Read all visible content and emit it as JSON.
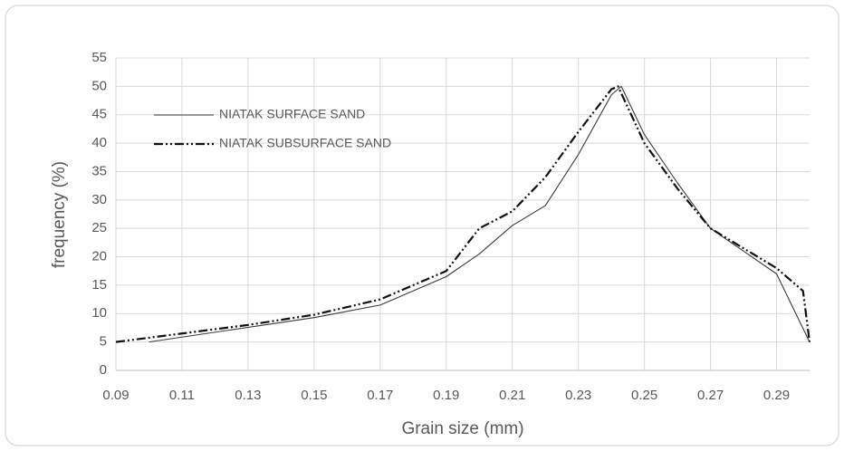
{
  "chart_data": {
    "type": "line",
    "xlabel": "Grain size (mm)",
    "ylabel": "frequency  (%)",
    "xlim": [
      0.09,
      0.3
    ],
    "xticks": [
      0.09,
      0.11,
      0.13,
      0.15,
      0.17,
      0.19,
      0.21,
      0.23,
      0.25,
      0.27,
      0.29
    ],
    "ylim": [
      0,
      55
    ],
    "yticks": [
      0,
      5,
      10,
      15,
      20,
      25,
      30,
      35,
      40,
      45,
      50,
      55
    ],
    "grid": true,
    "legend": "upper-left",
    "series": [
      {
        "name": "NIATAK SURFACE SAND",
        "color": "#3a3a3a",
        "dash": "solid",
        "x": [
          0.1,
          0.15,
          0.17,
          0.19,
          0.2,
          0.21,
          0.22,
          0.23,
          0.24,
          0.243,
          0.25,
          0.26,
          0.27,
          0.28,
          0.29,
          0.3
        ],
        "values": [
          5,
          9.3,
          11.5,
          16.5,
          20.5,
          25.5,
          29,
          38,
          48.5,
          50,
          41.5,
          33,
          25,
          21,
          17,
          5
        ]
      },
      {
        "name": "NIATAK SUBSURFACE SAND",
        "color": "#111111",
        "dash": "dash-dot-dot",
        "x": [
          0.09,
          0.11,
          0.13,
          0.15,
          0.17,
          0.19,
          0.2,
          0.21,
          0.22,
          0.23,
          0.24,
          0.242,
          0.25,
          0.26,
          0.27,
          0.28,
          0.29,
          0.298,
          0.3
        ],
        "values": [
          5,
          6.5,
          8,
          9.8,
          12.5,
          17.5,
          25,
          28,
          34,
          42,
          49.5,
          50,
          40,
          32,
          25,
          21.5,
          18,
          14,
          5
        ]
      }
    ]
  }
}
